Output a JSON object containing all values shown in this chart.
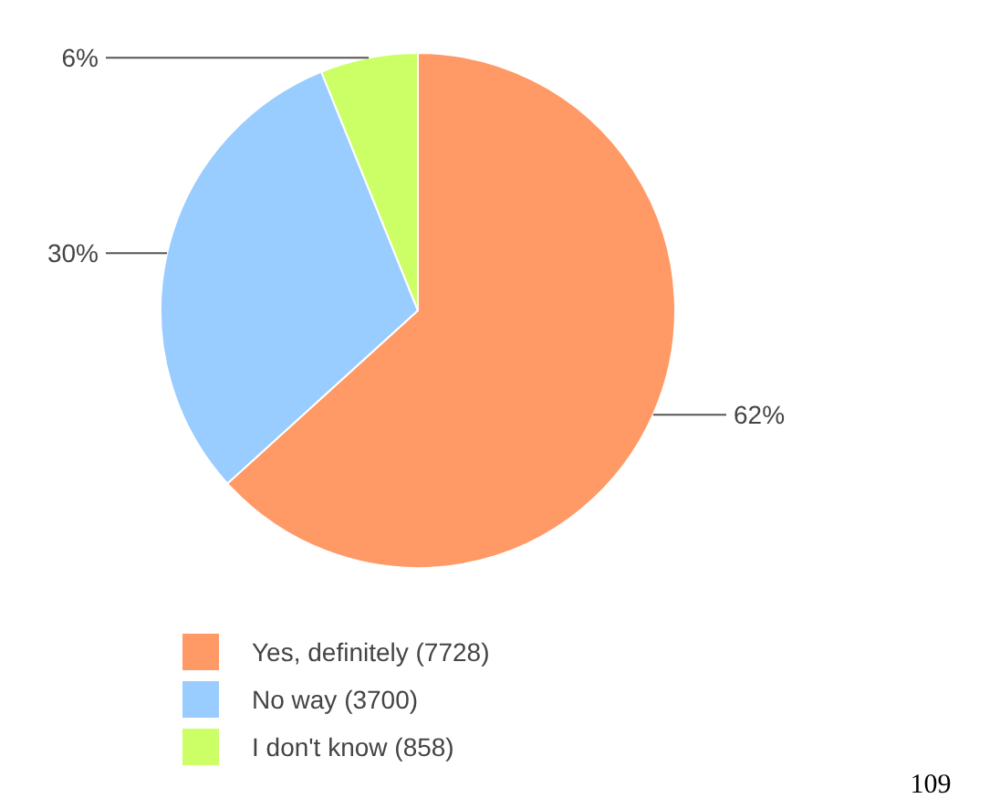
{
  "chart_data": {
    "type": "pie",
    "categories": [
      "Yes, definitely (7728)",
      "No way (3700)",
      "I don't know (858)"
    ],
    "values": [
      62,
      30,
      6
    ],
    "colors": [
      "#ff9966",
      "#99ccff",
      "#ccff66"
    ],
    "value_labels": [
      "62%",
      "30%",
      "6%"
    ],
    "legend": "bottom",
    "annotations": [
      "109"
    ]
  }
}
